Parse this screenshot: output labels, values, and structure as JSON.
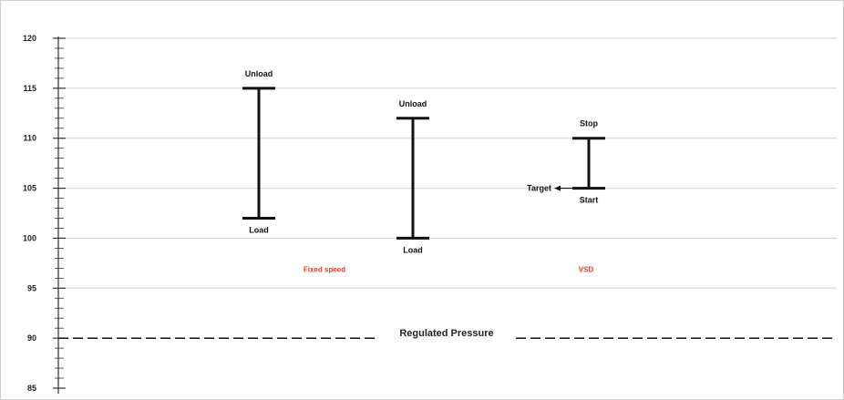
{
  "chart_data": {
    "type": "range",
    "ylim": [
      85,
      120
    ],
    "y_ticks": [
      85,
      90,
      95,
      100,
      105,
      110,
      115,
      120
    ],
    "grid": "horizontal",
    "ranges": [
      {
        "x": 1,
        "low": 102,
        "high": 115,
        "low_label": "Load",
        "high_label": "Unload"
      },
      {
        "x": 2,
        "low": 100,
        "high": 112,
        "low_label": "Load",
        "high_label": "Unload"
      },
      {
        "x": 3,
        "low": 105,
        "high": 110,
        "low_label": "Start",
        "high_label": "Stop",
        "target": 105,
        "target_label": "Target"
      }
    ],
    "group_labels": [
      {
        "text": "Fixed speed",
        "x": 1.4,
        "y": 97
      },
      {
        "text": "VSD",
        "x": 3,
        "y": 97
      }
    ],
    "reference_line": {
      "y": 90,
      "label": "Regulated Pressure",
      "style": "dashed"
    },
    "colors": {
      "bars": "#111111",
      "grid": "#d0d0d0",
      "group_label": "#e23b2e"
    }
  }
}
